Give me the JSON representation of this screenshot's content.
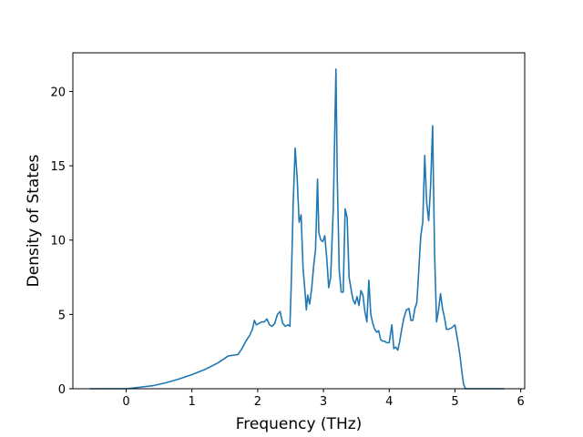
{
  "chart_data": {
    "type": "line",
    "title": "",
    "xlabel": "Frequency (THz)",
    "ylabel": "Density of States",
    "xlim": [
      -0.81,
      6.06
    ],
    "ylim": [
      0,
      22.6
    ],
    "xticks": [
      0,
      1,
      2,
      3,
      4,
      5,
      6
    ],
    "yticks": [
      0,
      5,
      10,
      15,
      20
    ],
    "grid": false,
    "legend": "none",
    "colors": {
      "line": "#1f77b4"
    },
    "series": [
      {
        "x": [
          -0.55,
          -0.3,
          0.0,
          0.2,
          0.4,
          0.6,
          0.8,
          1.0,
          1.2,
          1.4,
          1.55,
          1.62,
          1.7,
          1.76,
          1.82,
          1.88,
          1.92,
          1.95,
          1.98,
          2.02,
          2.06,
          2.1,
          2.14,
          2.18,
          2.22,
          2.26,
          2.3,
          2.34,
          2.38,
          2.42,
          2.46,
          2.49,
          2.51,
          2.54,
          2.57,
          2.6,
          2.63,
          2.66,
          2.69,
          2.72,
          2.74,
          2.76,
          2.79,
          2.82,
          2.85,
          2.88,
          2.91,
          2.93,
          2.96,
          2.99,
          3.02,
          3.05,
          3.08,
          3.11,
          3.15,
          3.19,
          3.21,
          3.24,
          3.27,
          3.3,
          3.33,
          3.36,
          3.39,
          3.42,
          3.45,
          3.48,
          3.51,
          3.54,
          3.57,
          3.6,
          3.63,
          3.66,
          3.69,
          3.72,
          3.75,
          3.78,
          3.81,
          3.84,
          3.87,
          3.9,
          3.93,
          3.96,
          4.0,
          4.04,
          4.07,
          4.1,
          4.13,
          4.16,
          4.19,
          4.22,
          4.26,
          4.3,
          4.33,
          4.36,
          4.39,
          4.42,
          4.45,
          4.48,
          4.51,
          4.54,
          4.57,
          4.6,
          4.63,
          4.66,
          4.69,
          4.72,
          4.75,
          4.78,
          4.81,
          4.84,
          4.87,
          4.9,
          4.95,
          5.0,
          5.05,
          5.08,
          5.1,
          5.13,
          5.16,
          5.19,
          5.22,
          5.25,
          5.3,
          5.5,
          5.75
        ],
        "y": [
          0,
          0,
          0,
          0.1,
          0.2,
          0.4,
          0.65,
          0.95,
          1.3,
          1.75,
          2.2,
          2.25,
          2.3,
          2.7,
          3.2,
          3.6,
          4.0,
          4.6,
          4.3,
          4.4,
          4.5,
          4.5,
          4.7,
          4.3,
          4.2,
          4.4,
          5.0,
          5.2,
          4.4,
          4.2,
          4.3,
          4.2,
          7.0,
          12.5,
          16.2,
          14.2,
          11.2,
          11.7,
          8.1,
          6.5,
          5.3,
          6.3,
          5.7,
          6.7,
          8.2,
          9.4,
          14.1,
          10.5,
          10.0,
          9.9,
          10.3,
          8.8,
          6.8,
          7.5,
          12.2,
          21.5,
          14.2,
          8.0,
          6.5,
          6.5,
          12.1,
          11.5,
          7.5,
          6.7,
          6.0,
          5.7,
          6.2,
          5.6,
          6.6,
          6.3,
          5.2,
          4.5,
          7.3,
          5.0,
          4.4,
          4.0,
          3.8,
          3.9,
          3.3,
          3.2,
          3.2,
          3.1,
          3.1,
          4.3,
          2.7,
          2.8,
          2.6,
          3.2,
          4.0,
          4.7,
          5.3,
          5.4,
          4.6,
          4.6,
          5.4,
          5.8,
          8.0,
          10.3,
          11.2,
          15.7,
          12.5,
          11.3,
          13.7,
          17.7,
          9.0,
          4.5,
          5.3,
          6.4,
          5.4,
          4.8,
          4.0,
          4.0,
          4.1,
          4.3,
          3.0,
          2.1,
          1.3,
          0.3,
          0,
          0,
          0,
          0,
          0,
          0,
          0
        ]
      }
    ]
  }
}
